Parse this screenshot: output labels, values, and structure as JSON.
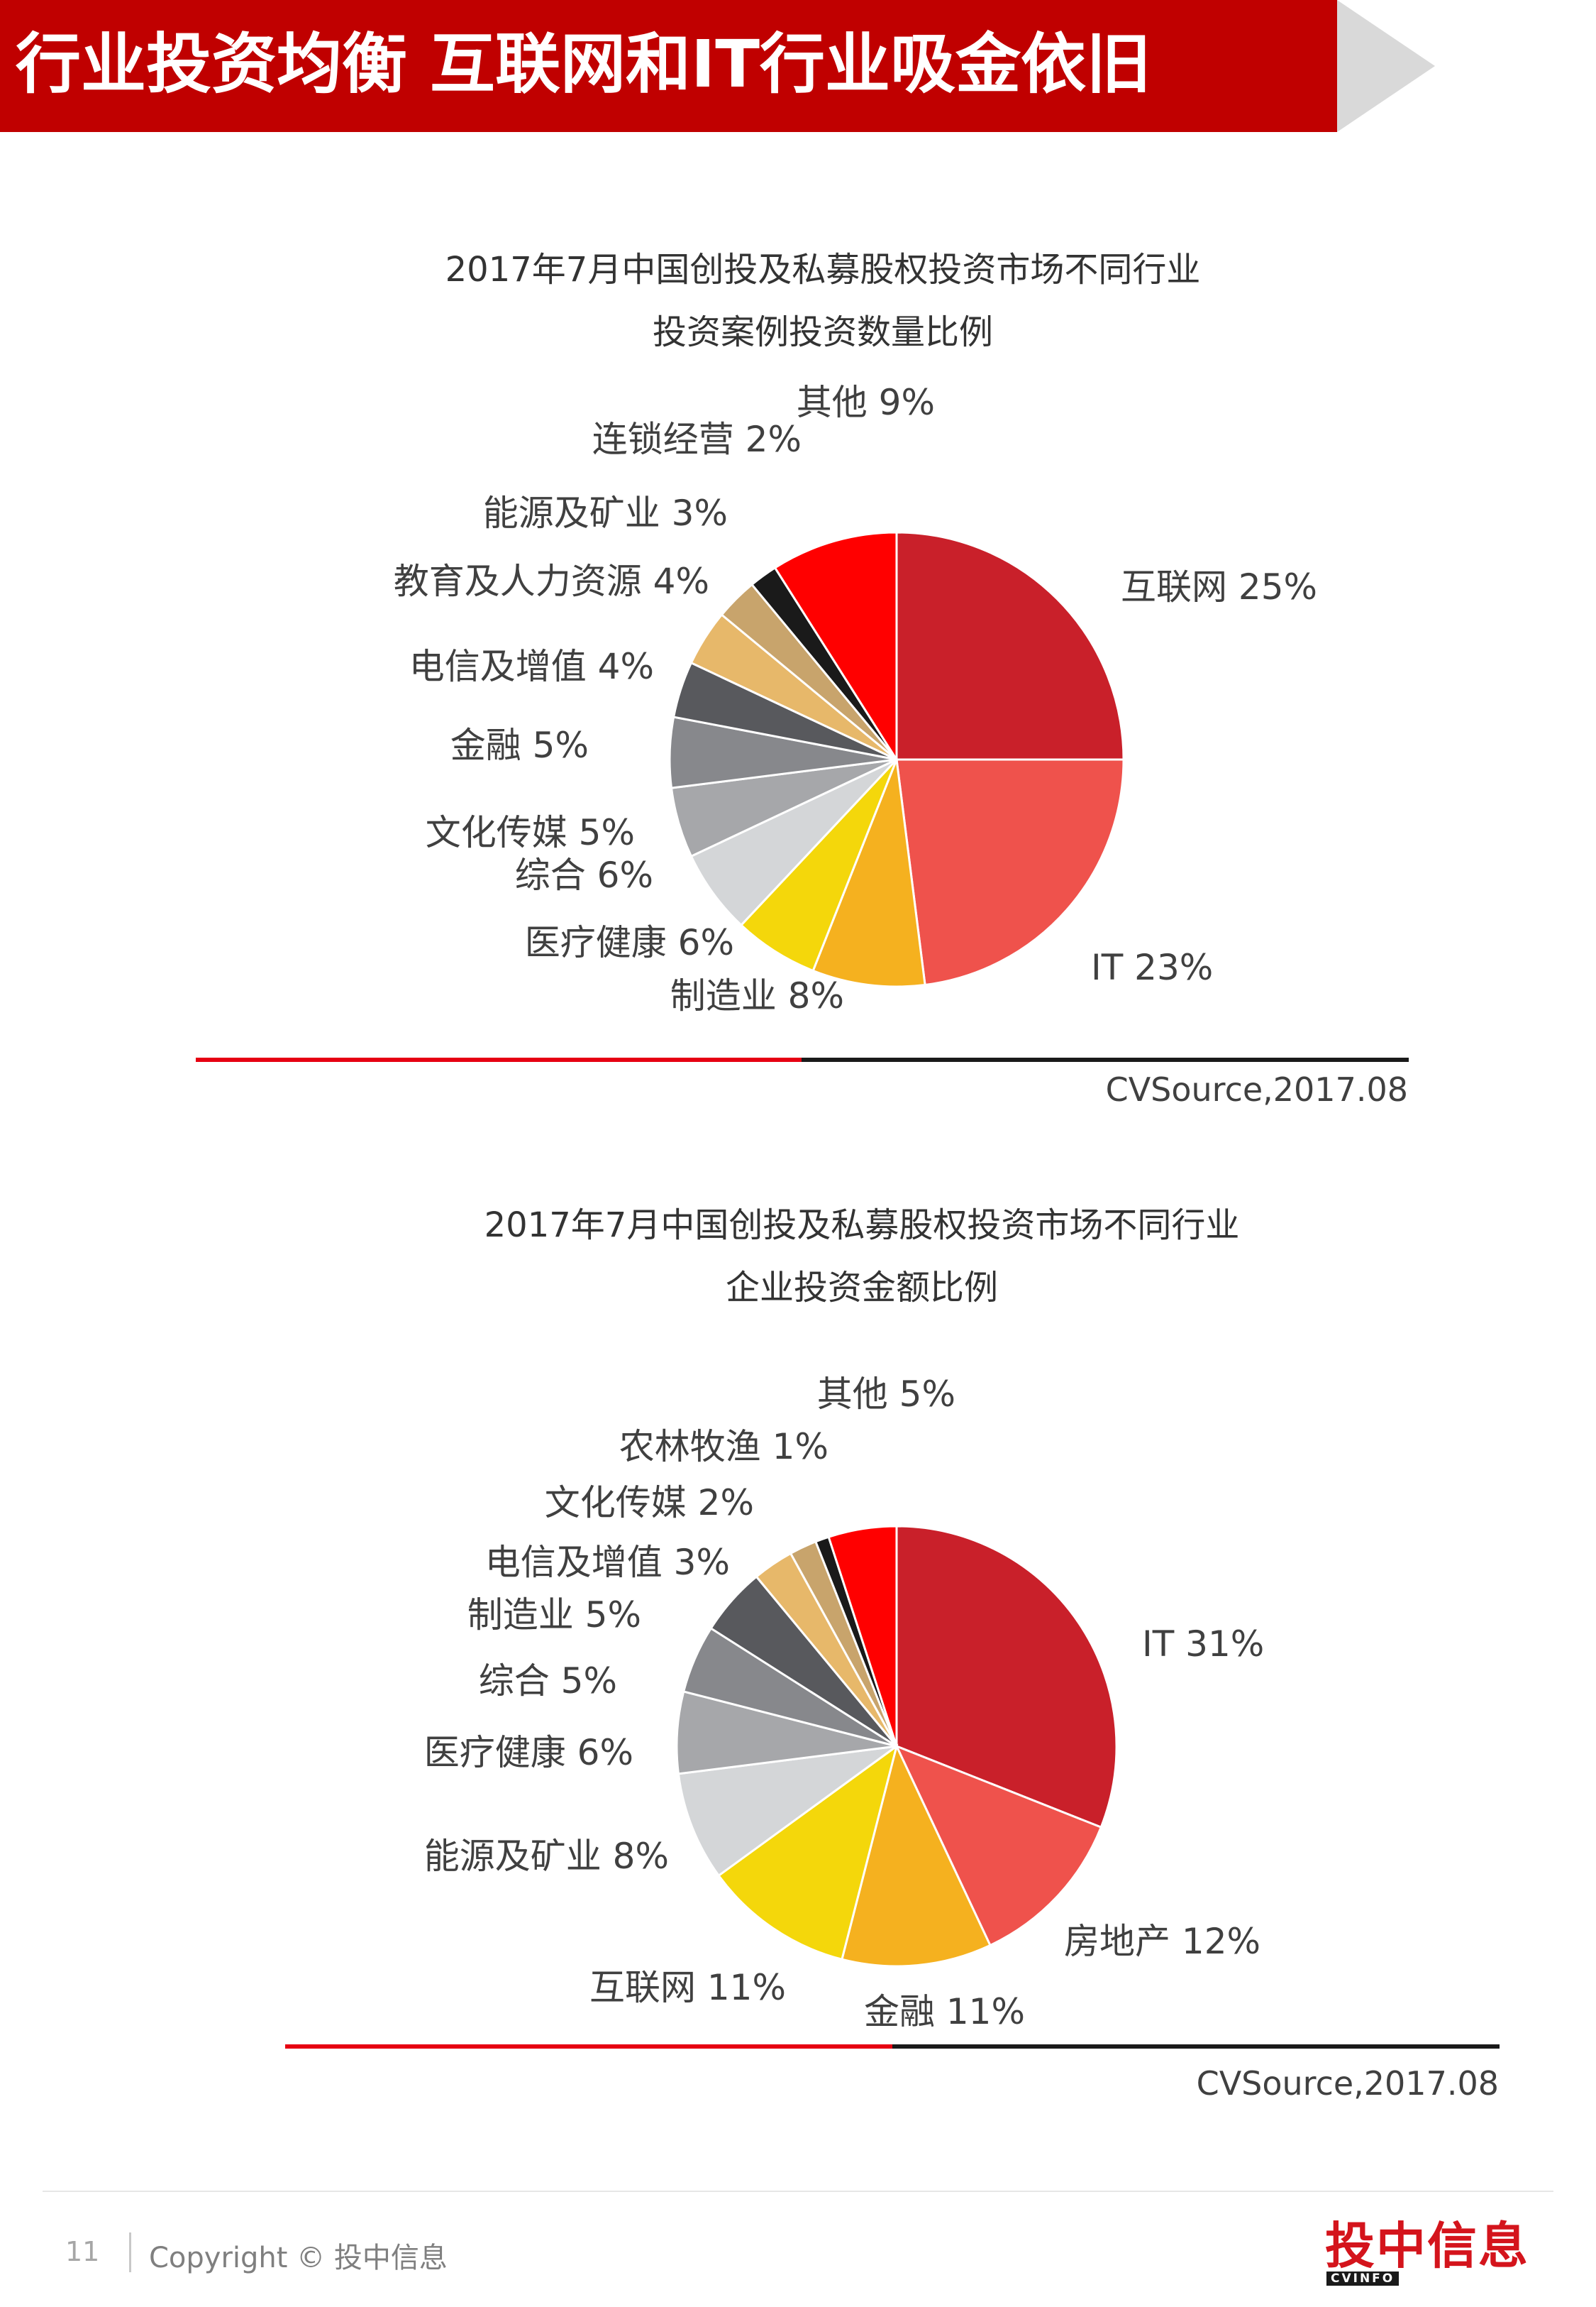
{
  "page": {
    "header_title": "行业投资均衡 互联网和IT行业吸金依旧",
    "page_number": "11",
    "copyright": "Copyright © 投中信息",
    "logo_brand": "投中信息",
    "logo_sub": "CVINFO"
  },
  "colors": {
    "header_red": "#c00000",
    "accent_red": "#e60012",
    "arrow_gray": "#d9d9d9"
  },
  "chart_data": [
    {
      "type": "pie",
      "title_line1": "2017年7月中国创投及私募股权投资市场不同行业",
      "title_line2": "投资案例投资数量比例",
      "source": "CVSource,2017.08",
      "slices": [
        {
          "label": "互联网",
          "value": 25,
          "display": "互联网 25%",
          "color": "#c9202a"
        },
        {
          "label": "IT",
          "value": 23,
          "display": "IT 23%",
          "color": "#ef524c"
        },
        {
          "label": "制造业",
          "value": 8,
          "display": "制造业 8%",
          "color": "#f5b11f"
        },
        {
          "label": "医疗健康",
          "value": 6,
          "display": "医疗健康 6%",
          "color": "#f4d70b"
        },
        {
          "label": "综合",
          "value": 6,
          "display": "综合 6%",
          "color": "#d4d6d8"
        },
        {
          "label": "文化传媒",
          "value": 5,
          "display": "文化传媒 5%",
          "color": "#a6a7aa"
        },
        {
          "label": "金融",
          "value": 5,
          "display": "金融 5%",
          "color": "#87888c"
        },
        {
          "label": "电信及增值",
          "value": 4,
          "display": "电信及增值 4%",
          "color": "#58595d"
        },
        {
          "label": "教育及人力资源",
          "value": 4,
          "display": "教育及人力资源 4%",
          "color": "#e7b86a"
        },
        {
          "label": "能源及矿业",
          "value": 3,
          "display": "能源及矿业 3%",
          "color": "#c8a46c"
        },
        {
          "label": "连锁经营",
          "value": 2,
          "display": "连锁经营 2%",
          "color": "#1a1a1a"
        },
        {
          "label": "其他",
          "value": 9,
          "display": "其他 9%",
          "color": "#ff0000"
        }
      ]
    },
    {
      "type": "pie",
      "title_line1": "2017年7月中国创投及私募股权投资市场不同行业",
      "title_line2": "企业投资金额比例",
      "source": "CVSource,2017.08",
      "slices": [
        {
          "label": "IT",
          "value": 31,
          "display": "IT 31%",
          "color": "#c9202a"
        },
        {
          "label": "房地产",
          "value": 12,
          "display": "房地产 12%",
          "color": "#ef524c"
        },
        {
          "label": "金融",
          "value": 11,
          "display": "金融 11%",
          "color": "#f5b11f"
        },
        {
          "label": "互联网",
          "value": 11,
          "display": "互联网 11%",
          "color": "#f4d70b"
        },
        {
          "label": "能源及矿业",
          "value": 8,
          "display": "能源及矿业 8%",
          "color": "#d4d6d8"
        },
        {
          "label": "医疗健康",
          "value": 6,
          "display": "医疗健康 6%",
          "color": "#a6a7aa"
        },
        {
          "label": "综合",
          "value": 5,
          "display": "综合 5%",
          "color": "#87888c"
        },
        {
          "label": "制造业",
          "value": 5,
          "display": "制造业 5%",
          "color": "#58595d"
        },
        {
          "label": "电信及增值",
          "value": 3,
          "display": "电信及增值 3%",
          "color": "#e7b86a"
        },
        {
          "label": "文化传媒",
          "value": 2,
          "display": "文化传媒 2%",
          "color": "#c8a46c"
        },
        {
          "label": "农林牧渔",
          "value": 1,
          "display": "农林牧渔 1%",
          "color": "#1a1a1a"
        },
        {
          "label": "其他",
          "value": 5,
          "display": "其他 5%",
          "color": "#ff0000"
        }
      ]
    }
  ]
}
